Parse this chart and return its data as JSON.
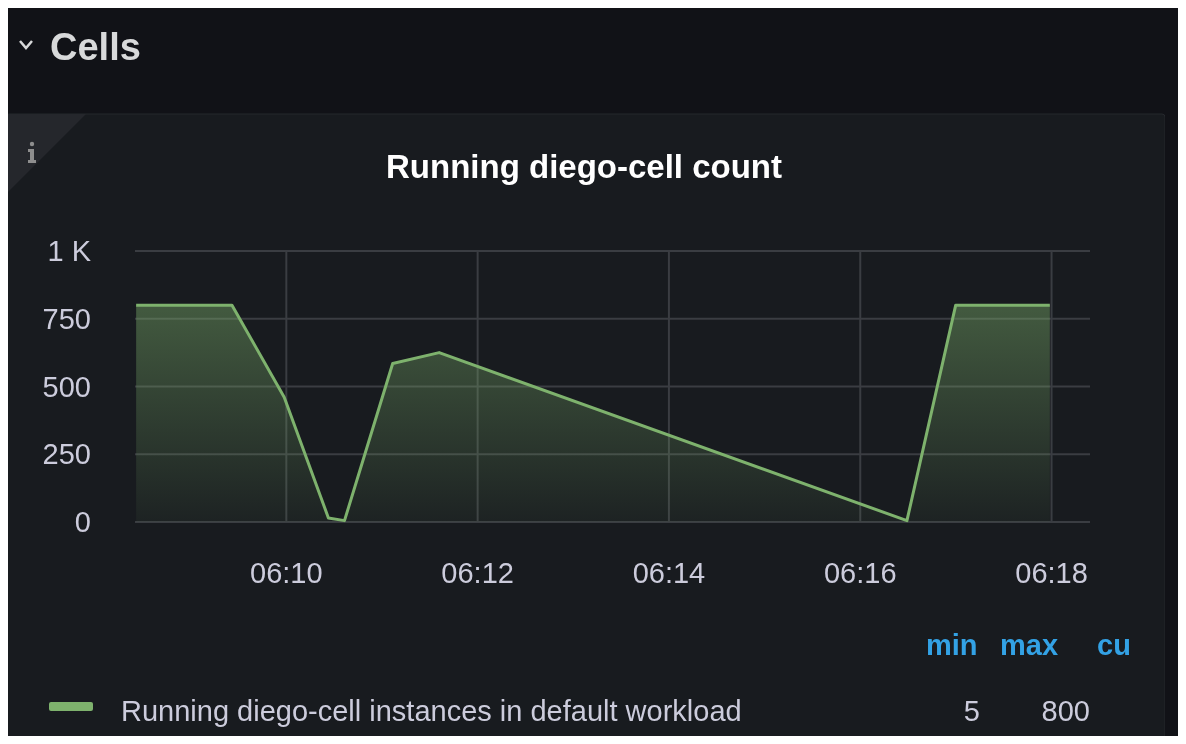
{
  "chart_data": {
    "type": "area",
    "title": "Running diego-cell count",
    "x": [
      6.1405,
      6.1572,
      6.1663,
      6.174,
      6.1768,
      6.1852,
      6.1933,
      6.2748,
      6.2833,
      6.2997
    ],
    "series": [
      {
        "name": "Running diego-cell instances in default workload",
        "color": "#7eb26d",
        "values": [
          800,
          800,
          460,
          15,
          5,
          585,
          625,
          5,
          800,
          800
        ]
      }
    ],
    "xlim": [
      6.1403,
      6.3067
    ],
    "xticks": [
      {
        "value": 6.16667,
        "label": "06:10"
      },
      {
        "value": 6.2,
        "label": "06:12"
      },
      {
        "value": 6.23333,
        "label": "06:14"
      },
      {
        "value": 6.26667,
        "label": "06:16"
      },
      {
        "value": 6.3,
        "label": "06:18"
      }
    ],
    "ylim": [
      0,
      1000
    ],
    "yticks": [
      0,
      250,
      500,
      750,
      {
        "value": 1000,
        "label": "1 K"
      }
    ],
    "grid": true,
    "legend": "bottom",
    "marker": "none",
    "line_style": "solid",
    "annotations": [
      "Cells",
      "min",
      "max",
      "cu",
      "5",
      "800"
    ]
  }
}
